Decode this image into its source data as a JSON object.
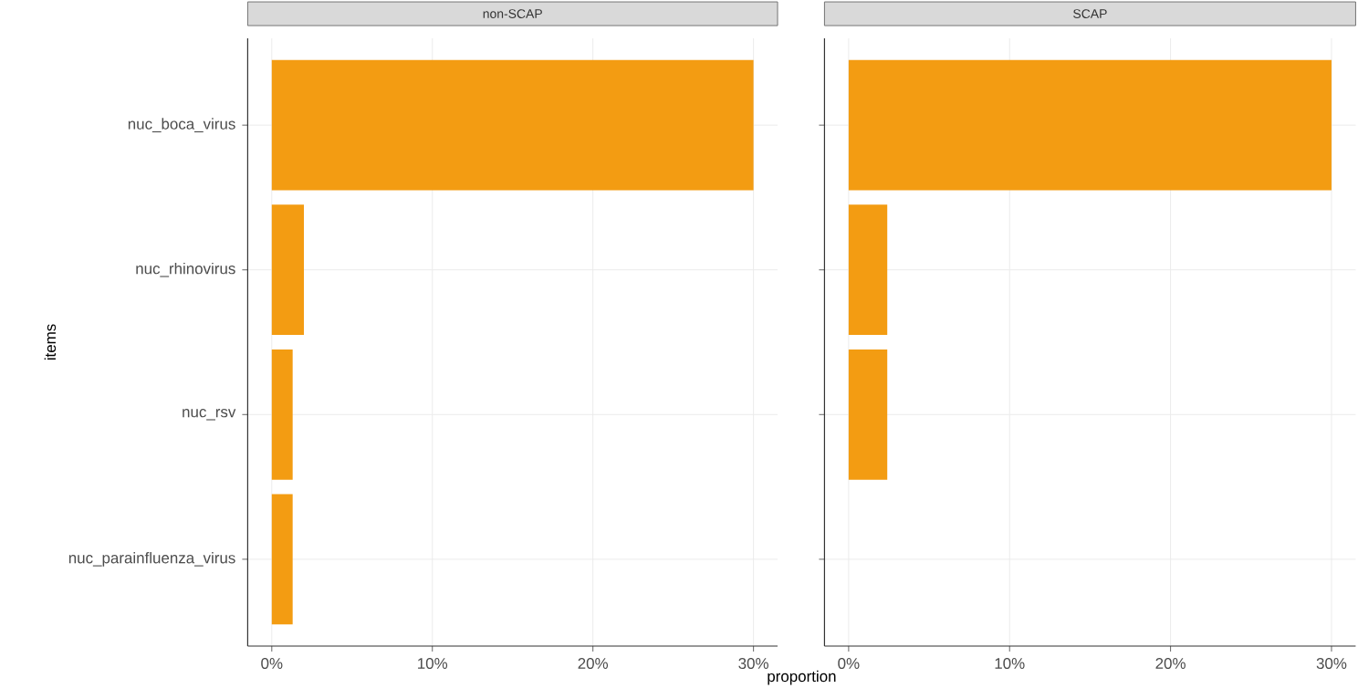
{
  "chart_data": [
    {
      "type": "bar",
      "orientation": "horizontal",
      "title": "non-SCAP",
      "xlabel": "proportion",
      "ylabel": "items",
      "categories": [
        "nuc_boca_virus",
        "nuc_rhinovirus",
        "nuc_rsv",
        "nuc_parainfluenza_virus"
      ],
      "values": [
        30,
        2.0,
        1.3,
        1.3
      ],
      "color": "#f39c12",
      "xlim": [
        -1.5,
        31.5
      ],
      "xticks": [
        {
          "value": 0,
          "label": "0%"
        },
        {
          "value": 10,
          "label": "10%"
        },
        {
          "value": 20,
          "label": "20%"
        },
        {
          "value": 30,
          "label": "30%"
        }
      ],
      "grid": true
    },
    {
      "type": "bar",
      "orientation": "horizontal",
      "title": "SCAP",
      "categories": [
        null,
        null,
        null,
        null
      ],
      "values": [
        30,
        2.4,
        2.4,
        null
      ],
      "color": "#f39c12",
      "xlim": [
        -1.5,
        31.5
      ],
      "xticks": [
        {
          "value": 0,
          "label": "0%"
        },
        {
          "value": 10,
          "label": "10%"
        },
        {
          "value": 20,
          "label": "20%"
        },
        {
          "value": 30,
          "label": "30%"
        }
      ],
      "grid": true,
      "tick_labels": "x"
    }
  ]
}
